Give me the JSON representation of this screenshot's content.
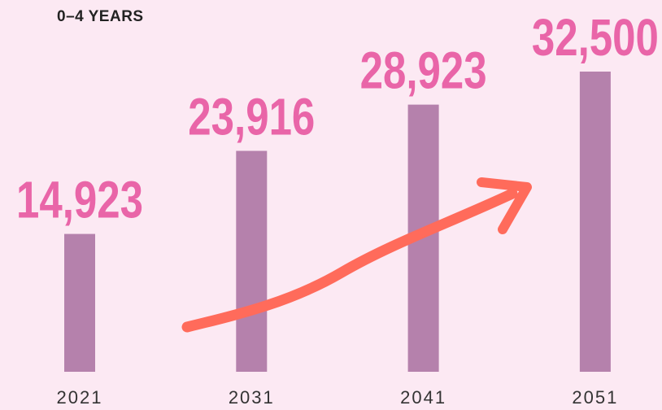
{
  "chart_data": {
    "type": "bar",
    "title": "0–4 YEARS",
    "categories": [
      "2021",
      "2031",
      "2041",
      "2051"
    ],
    "values": [
      14923,
      23916,
      28923,
      32500
    ],
    "value_labels": [
      "14,923",
      "23,916",
      "28,923",
      "32,500"
    ],
    "color": "#b581ac",
    "label_color": "#e965a8"
  }
}
